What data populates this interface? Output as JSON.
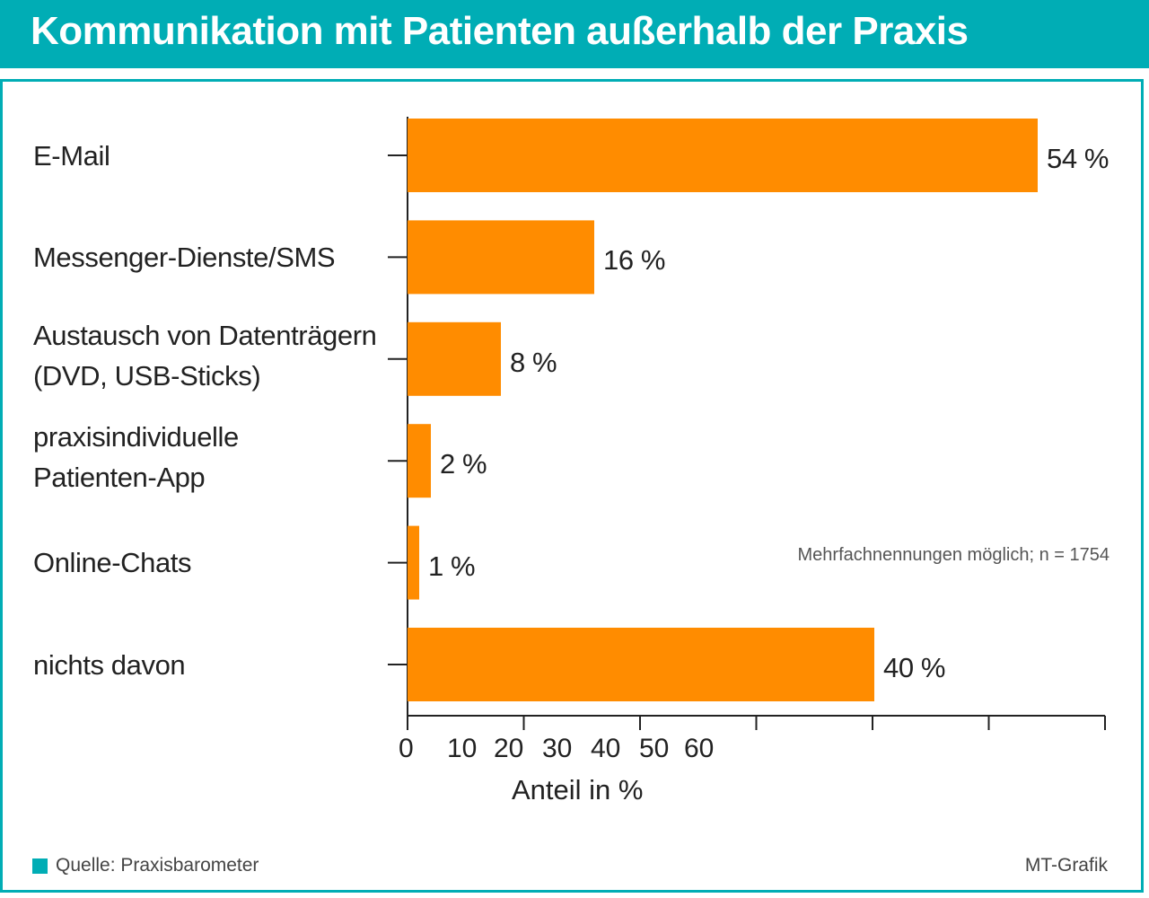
{
  "title": "Kommunikation mit Patienten außerhalb der Praxis",
  "chart_data": {
    "type": "bar",
    "orientation": "horizontal",
    "categories": [
      [
        "E-Mail"
      ],
      [
        "Messenger-Dienste/SMS"
      ],
      [
        "Austausch von Datenträgern",
        "(DVD, USB-Sticks)"
      ],
      [
        "praxisindividuelle",
        "Patienten-App"
      ],
      [
        "Online-Chats"
      ],
      [
        "nichts davon"
      ]
    ],
    "values": [
      54,
      16,
      8,
      2,
      1,
      40
    ],
    "value_labels": [
      "54 %",
      "16 %",
      "8 %",
      "2 %",
      "1 %",
      "40 %"
    ],
    "xticks": [
      "0",
      "10",
      "20",
      "30",
      "40",
      "50",
      "60"
    ],
    "xlim": [
      0,
      60
    ],
    "xlabel": "Anteil in %",
    "bar_color": "#ff8c00",
    "note": "Mehrfachnennungen möglich; n = 1754"
  },
  "footer": {
    "source": "Quelle: Praxisbarometer",
    "credit": "MT-Grafik"
  },
  "colors": {
    "accent": "#00adb5",
    "bar": "#ff8c00"
  }
}
